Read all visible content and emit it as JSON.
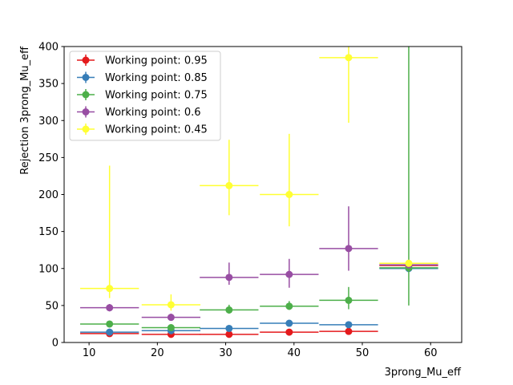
{
  "chart_data": {
    "type": "scatter",
    "title": "",
    "xlabel": "3prong_Mu_eff",
    "ylabel": "Rejection 3prong_Mu_eff",
    "xlim": [
      6.35,
      64.55
    ],
    "ylim": [
      0,
      400
    ],
    "xticks": [
      10,
      20,
      30,
      40,
      50,
      60
    ],
    "yticks": [
      0,
      50,
      100,
      150,
      200,
      250,
      300,
      350,
      400
    ],
    "legend_position": "top-left",
    "x": [
      13.0,
      22.0,
      30.5,
      39.3,
      48.0,
      56.8
    ],
    "xerr": [
      4.3,
      4.3,
      4.3,
      4.3,
      4.3,
      4.3
    ],
    "series": [
      {
        "name": "Working point: 0.95",
        "color": "#e41a1c",
        "y": [
          12,
          11,
          11,
          14,
          15,
          104
        ],
        "yerr_low": [
          1,
          1,
          1,
          1,
          1,
          3
        ],
        "yerr_high": [
          1,
          1,
          1,
          1,
          1,
          3
        ]
      },
      {
        "name": "Working point: 0.85",
        "color": "#377eb8",
        "y": [
          14,
          16,
          19,
          26,
          24,
          100
        ],
        "yerr_low": [
          2,
          2,
          2,
          3,
          4,
          3
        ],
        "yerr_high": [
          2,
          2,
          2,
          3,
          4,
          3
        ]
      },
      {
        "name": "Working point: 0.75",
        "color": "#4daf4a",
        "y": [
          25,
          20,
          44,
          49,
          57,
          101
        ],
        "yerr_low": [
          3,
          3,
          5,
          5,
          12,
          51
        ],
        "yerr_high": [
          3,
          3,
          7,
          7,
          18,
          304
        ]
      },
      {
        "name": "Working point: 0.6",
        "color": "#984ea3",
        "y": [
          47,
          34,
          88,
          92,
          127,
          105
        ],
        "yerr_low": [
          5,
          4,
          10,
          18,
          30,
          3
        ],
        "yerr_high": [
          5,
          5,
          20,
          21,
          57,
          3
        ]
      },
      {
        "name": "Working point: 0.45",
        "color": "#ffff33",
        "y": [
          73,
          51,
          212,
          200,
          385,
          107
        ],
        "yerr_low": [
          13,
          8,
          40,
          43,
          88,
          3
        ],
        "yerr_high": [
          166,
          14,
          62,
          82,
          80,
          3
        ]
      }
    ]
  }
}
